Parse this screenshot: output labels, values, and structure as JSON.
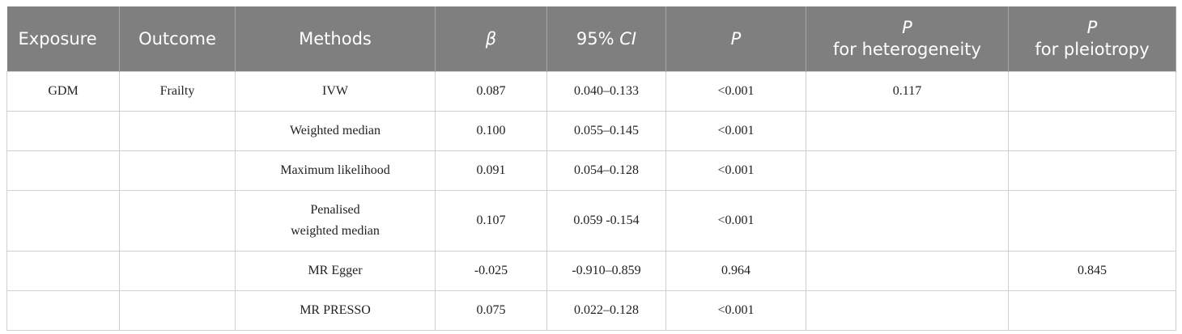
{
  "table": {
    "headers": [
      {
        "text": "Exposure"
      },
      {
        "text": "Outcome"
      },
      {
        "text": "Methods"
      },
      {
        "symbol": "β"
      },
      {
        "text": "95%",
        "symbol": "CI"
      },
      {
        "symbol": "P"
      },
      {
        "symbol": "P",
        "text": "for heterogeneity"
      },
      {
        "symbol": "P",
        "text": "for pleiotropy"
      }
    ],
    "rows": [
      [
        "GDM",
        "Frailty",
        [
          "IVW"
        ],
        "0.087",
        "0.040–0.133",
        "<0.001",
        "0.117",
        null
      ],
      [
        null,
        null,
        [
          "Weighted median"
        ],
        "0.100",
        "0.055–0.145",
        "<0.001",
        null,
        null
      ],
      [
        null,
        null,
        [
          "Maximum likelihood"
        ],
        "0.091",
        "0.054–0.128",
        "<0.001",
        null,
        null
      ],
      [
        null,
        null,
        [
          "Penalised",
          "weighted median"
        ],
        "0.107",
        "0.059 -0.154",
        "<0.001",
        null,
        null
      ],
      [
        null,
        null,
        [
          "MR Egger"
        ],
        "-0.025",
        "-0.910–0.859",
        "0.964",
        null,
        "0.845"
      ],
      [
        null,
        null,
        [
          "MR PRESSO"
        ],
        "0.075",
        "0.022–0.128",
        "<0.001",
        null,
        null
      ]
    ]
  }
}
